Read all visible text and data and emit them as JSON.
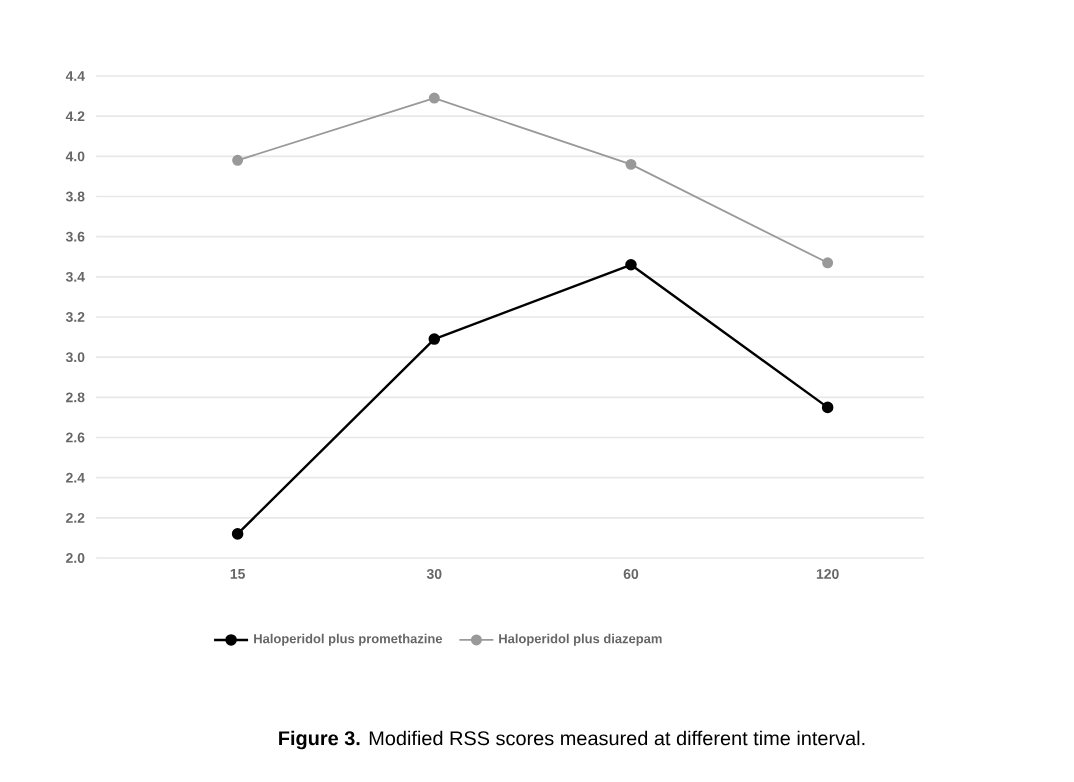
{
  "chart_data": {
    "type": "line",
    "categories": [
      "15",
      "30",
      "60",
      "120"
    ],
    "series": [
      {
        "name": "Haloperidol plus promethazine",
        "color": "#000000",
        "values": [
          2.12,
          3.09,
          3.46,
          2.75
        ]
      },
      {
        "name": "Haloperidol plus diazepam",
        "color": "#999999",
        "values": [
          3.98,
          4.29,
          3.96,
          3.47
        ]
      }
    ],
    "ylim": [
      2.0,
      4.4
    ],
    "yticks": [
      {
        "value": 2.0,
        "label": "2.0"
      },
      {
        "value": 2.2,
        "label": "2.2"
      },
      {
        "value": 2.4,
        "label": "2.4"
      },
      {
        "value": 2.6,
        "label": "2.6"
      },
      {
        "value": 2.8,
        "label": "2.8"
      },
      {
        "value": 3.0,
        "label": "3.0"
      },
      {
        "value": 3.2,
        "label": "3.2"
      },
      {
        "value": 3.4,
        "label": "3.4"
      },
      {
        "value": 3.6,
        "label": "3.6"
      },
      {
        "value": 3.8,
        "label": "3.8"
      },
      {
        "value": 4.0,
        "label": "4.0"
      },
      {
        "value": 4.2,
        "label": "4.2"
      },
      {
        "value": 4.4,
        "label": "4.4"
      }
    ],
    "grid": "y",
    "legend": "bottom",
    "marker": "circle",
    "line_style": "solid",
    "annotations": [
      "**Figure 3.** Modified RSS scores measured at different time interval."
    ]
  }
}
